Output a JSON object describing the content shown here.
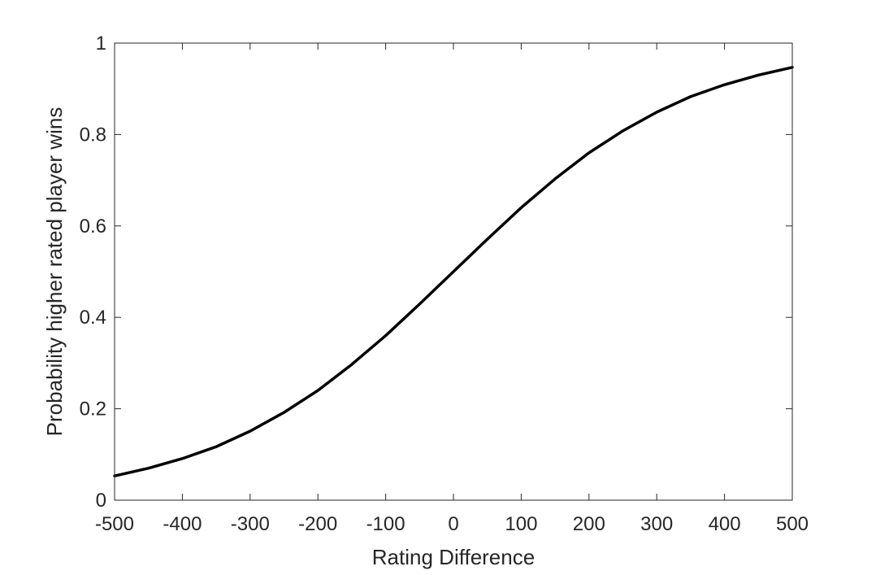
{
  "chart_data": {
    "type": "line",
    "title": "",
    "xlabel": "Rating Difference",
    "ylabel": "Probability higher rated player wins",
    "xlim": [
      -500,
      500
    ],
    "ylim": [
      0,
      1
    ],
    "xticks": [
      -500,
      -400,
      -300,
      -200,
      -100,
      0,
      100,
      200,
      300,
      400,
      500
    ],
    "yticks": [
      0,
      0.2,
      0.4,
      0.6,
      0.8,
      1
    ],
    "xtick_labels": [
      "-500",
      "-400",
      "-300",
      "-200",
      "-100",
      "0",
      "100",
      "200",
      "300",
      "400",
      "500"
    ],
    "ytick_labels": [
      "0",
      "0.2",
      "0.4",
      "0.6",
      "0.8",
      "1"
    ],
    "grid": false,
    "series": [
      {
        "color": "#000000",
        "x": [
          -500,
          -450,
          -400,
          -350,
          -300,
          -250,
          -200,
          -150,
          -100,
          -50,
          0,
          50,
          100,
          150,
          200,
          250,
          300,
          350,
          400,
          450,
          500
        ],
        "y": [
          0.053,
          0.07,
          0.091,
          0.117,
          0.151,
          0.192,
          0.24,
          0.297,
          0.36,
          0.429,
          0.5,
          0.571,
          0.64,
          0.703,
          0.76,
          0.808,
          0.849,
          0.883,
          0.909,
          0.93,
          0.947
        ]
      }
    ]
  }
}
